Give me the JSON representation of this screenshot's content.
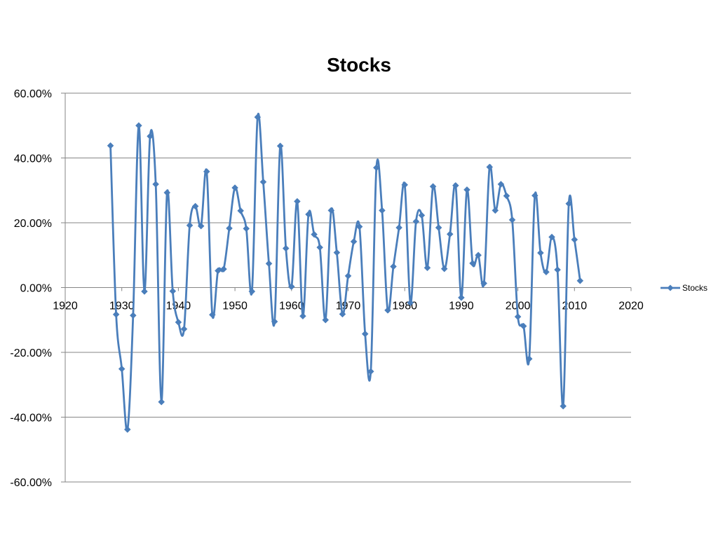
{
  "chart_data": {
    "type": "line",
    "title": "Stocks",
    "xlabel": "",
    "ylabel": "",
    "xlim": [
      1920,
      2020
    ],
    "ylim": [
      -60,
      60
    ],
    "x_ticks": [
      "1920",
      "1930",
      "1940",
      "1950",
      "1960",
      "1970",
      "1980",
      "1990",
      "2000",
      "2010",
      "2020"
    ],
    "y_ticks": [
      "60.00%",
      "40.00%",
      "20.00%",
      "0.00%",
      "-20.00%",
      "-40.00%",
      "-60.00%"
    ],
    "grid": "horizontal",
    "legend_position": "right",
    "series": [
      {
        "name": "Stocks",
        "color": "#4a7ebb",
        "marker": "diamond",
        "smooth": true,
        "x": [
          1928,
          1929,
          1930,
          1931,
          1932,
          1933,
          1934,
          1935,
          1936,
          1937,
          1938,
          1939,
          1940,
          1941,
          1942,
          1943,
          1944,
          1945,
          1946,
          1947,
          1948,
          1949,
          1950,
          1951,
          1952,
          1953,
          1954,
          1955,
          1956,
          1957,
          1958,
          1959,
          1960,
          1961,
          1962,
          1963,
          1964,
          1965,
          1966,
          1967,
          1968,
          1969,
          1970,
          1971,
          1972,
          1973,
          1974,
          1975,
          1976,
          1977,
          1978,
          1979,
          1980,
          1981,
          1982,
          1983,
          1984,
          1985,
          1986,
          1987,
          1988,
          1989,
          1990,
          1991,
          1992,
          1993,
          1994,
          1995,
          1996,
          1997,
          1998,
          1999,
          2000,
          2001,
          2002,
          2003,
          2004,
          2005,
          2006,
          2007,
          2008,
          2009,
          2010,
          2011
        ],
        "y": [
          43.8,
          -8.3,
          -25.1,
          -43.8,
          -8.6,
          50.0,
          -1.2,
          46.7,
          31.9,
          -35.3,
          29.3,
          -1.1,
          -10.7,
          -12.8,
          19.2,
          25.1,
          19.0,
          35.8,
          -8.4,
          5.2,
          5.7,
          18.3,
          30.8,
          23.7,
          18.2,
          -1.2,
          52.6,
          32.6,
          7.4,
          -10.5,
          43.7,
          12.1,
          0.3,
          26.6,
          -8.8,
          22.6,
          16.4,
          12.4,
          -10.0,
          23.8,
          10.8,
          -8.2,
          3.6,
          14.2,
          18.8,
          -14.3,
          -25.9,
          37.0,
          23.8,
          -7.0,
          6.5,
          18.5,
          31.7,
          -4.7,
          20.4,
          22.3,
          6.1,
          31.2,
          18.5,
          5.8,
          16.5,
          31.5,
          -3.1,
          30.2,
          7.5,
          10.0,
          1.3,
          37.2,
          23.8,
          31.9,
          28.3,
          20.9,
          -9.0,
          -11.9,
          -22.0,
          28.4,
          10.7,
          4.8,
          15.6,
          5.5,
          -36.6,
          25.9,
          14.8,
          2.1
        ]
      }
    ]
  }
}
